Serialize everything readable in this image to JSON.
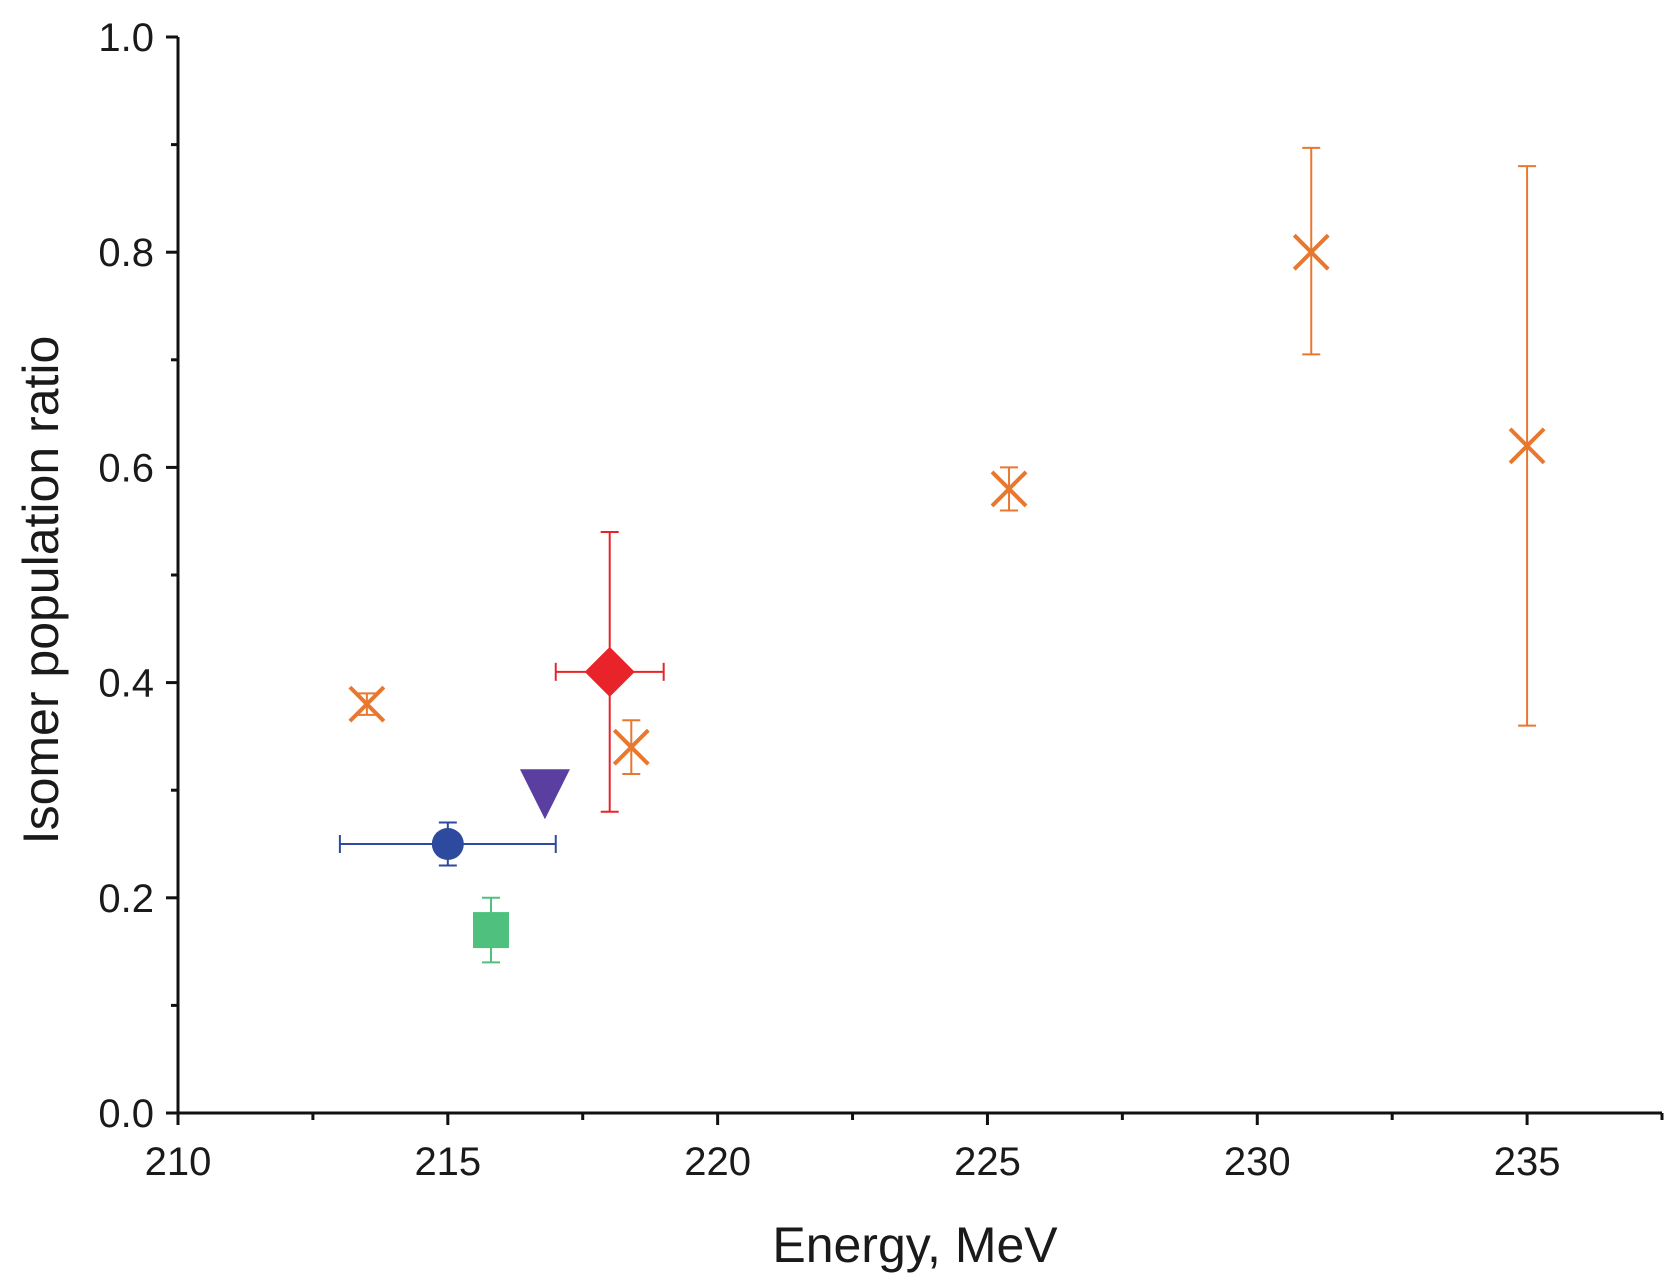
{
  "chart_data": {
    "type": "scatter",
    "title": "",
    "xlabel": "Energy, MeV",
    "ylabel": "Isomer population ratio",
    "xlim": [
      210,
      237.5
    ],
    "ylim": [
      0.0,
      1.0
    ],
    "x_ticks": [
      210,
      215,
      220,
      225,
      230,
      235
    ],
    "x_tick_labels": [
      "210",
      "215",
      "220",
      "225",
      "230",
      "235"
    ],
    "x_minor_ticks": [
      212.5,
      217.5,
      222.5,
      227.5,
      232.5,
      237.5
    ],
    "y_ticks": [
      0.0,
      0.2,
      0.4,
      0.6,
      0.8,
      1.0
    ],
    "y_tick_labels": [
      "0.0",
      "0.2",
      "0.4",
      "0.6",
      "0.8",
      "1.0"
    ],
    "y_minor_ticks": [
      0.1,
      0.3,
      0.5,
      0.7,
      0.9
    ],
    "grid": false,
    "series": [
      {
        "marker": "x-cross",
        "color": "#E87730",
        "points": [
          {
            "x": 213.5,
            "y": 0.38,
            "ylo": 0.37,
            "yhi": 0.39
          },
          {
            "x": 218.4,
            "y": 0.34,
            "ylo": 0.315,
            "yhi": 0.365
          },
          {
            "x": 225.4,
            "y": 0.58,
            "ylo": 0.56,
            "yhi": 0.6
          },
          {
            "x": 231.0,
            "y": 0.8,
            "ylo": 0.705,
            "yhi": 0.897
          },
          {
            "x": 235.0,
            "y": 0.62,
            "ylo": 0.36,
            "yhi": 0.88
          }
        ]
      },
      {
        "marker": "diamond",
        "color": "#E8242A",
        "points": [
          {
            "x": 218.0,
            "y": 0.41,
            "ylo": 0.28,
            "yhi": 0.54,
            "xlo": 217.0,
            "xhi": 219.0
          }
        ]
      },
      {
        "marker": "circle",
        "color": "#2D4A9E",
        "points": [
          {
            "x": 215.0,
            "y": 0.25,
            "ylo": 0.23,
            "yhi": 0.27,
            "xlo": 213.0,
            "xhi": 217.0
          }
        ]
      },
      {
        "marker": "triangle-down",
        "color": "#5B3FA0",
        "points": [
          {
            "x": 216.8,
            "y": 0.3
          }
        ]
      },
      {
        "marker": "square",
        "color": "#4FC07E",
        "points": [
          {
            "x": 215.8,
            "y": 0.17,
            "ylo": 0.14,
            "yhi": 0.2
          }
        ]
      }
    ]
  }
}
